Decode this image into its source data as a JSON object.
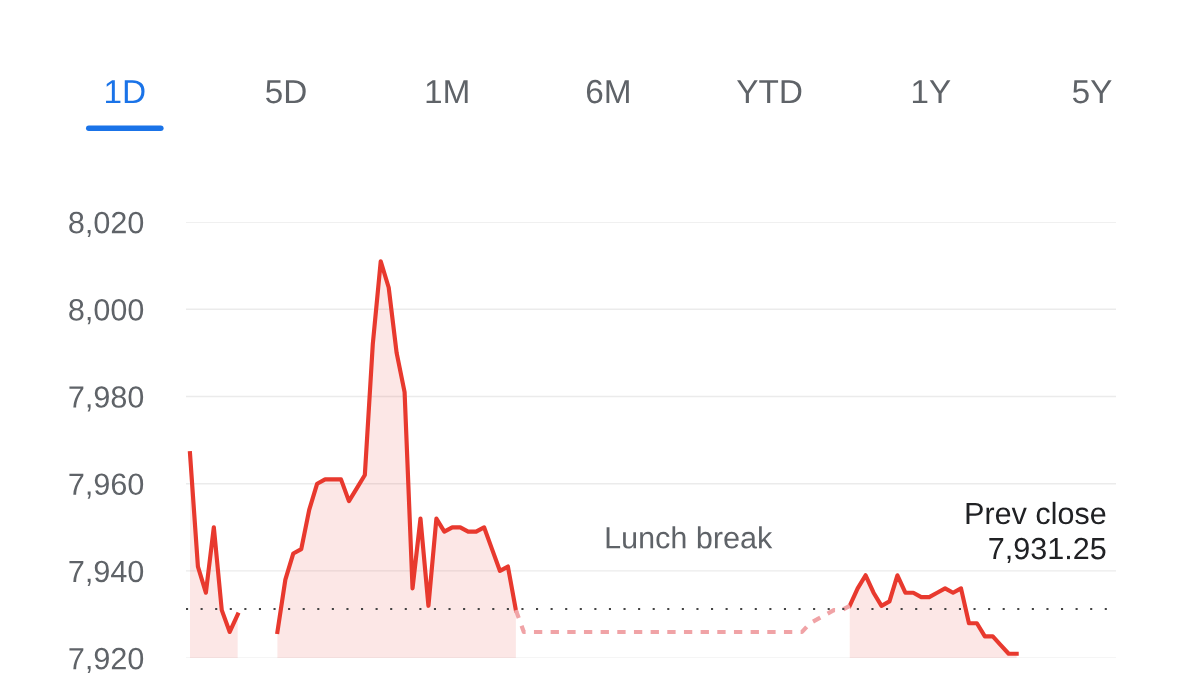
{
  "chart_data": {
    "type": "area",
    "categories": [
      null,
      null,
      null,
      null,
      null,
      null,
      null,
      null,
      null,
      null,
      null,
      null,
      null,
      null,
      null,
      null,
      null,
      null,
      null,
      null,
      null,
      null,
      null,
      null,
      null,
      null,
      null,
      null,
      null,
      null,
      null,
      null,
      null,
      null,
      null,
      null,
      null,
      null,
      null,
      null,
      null,
      null,
      null,
      null,
      null,
      null,
      null,
      null,
      null,
      null,
      null,
      null,
      null,
      null,
      null,
      null,
      null,
      null,
      null,
      null,
      null,
      null,
      null,
      null,
      null,
      null,
      null,
      null,
      null,
      null,
      null,
      null,
      null,
      null,
      null,
      null,
      null,
      null,
      null,
      null,
      null,
      null,
      null,
      null,
      null,
      null,
      null,
      null,
      null,
      null,
      null,
      null,
      null,
      null,
      null,
      null,
      null,
      null,
      null,
      null,
      null,
      null,
      null,
      null,
      null,
      null,
      null,
      null,
      null,
      null,
      null,
      null,
      null,
      null,
      null,
      null,
      null
    ],
    "series": [
      {
        "color": "#e8392e",
        "values": [
          7967,
          7941,
          7935,
          7950,
          7931,
          7926,
          7930,
          null,
          null,
          null,
          null,
          7926,
          7938,
          7944,
          7945,
          7954,
          7960,
          7961,
          7961,
          7961,
          7956,
          7959,
          7962,
          7992,
          8011,
          8005,
          7990,
          7981,
          7936,
          7952,
          7932,
          7952,
          7949,
          7950,
          7950,
          7949,
          7949,
          7950,
          7945,
          7940,
          7941,
          7931,
          null,
          null,
          null,
          null,
          null,
          null,
          null,
          null,
          null,
          null,
          null,
          null,
          null,
          null,
          null,
          null,
          null,
          null,
          null,
          null,
          null,
          null,
          null,
          null,
          null,
          null,
          null,
          null,
          null,
          null,
          null,
          null,
          null,
          null,
          null,
          null,
          null,
          null,
          null,
          null,
          null,
          7932,
          7936,
          7939,
          7935,
          7932,
          7933,
          7939,
          7935,
          7935,
          7934,
          7934,
          7935,
          7936,
          7935,
          7936,
          7928,
          7928,
          7925,
          7925,
          7923,
          7921,
          7921,
          null,
          null,
          null,
          null,
          null,
          null,
          null,
          null,
          null,
          null,
          null,
          null
        ]
      },
      {
        "type": "line",
        "color": "#f0a3a6",
        "line_style": "dashed",
        "values": [
          null,
          null,
          null,
          null,
          null,
          null,
          null,
          null,
          null,
          null,
          null,
          null,
          null,
          null,
          null,
          null,
          null,
          null,
          null,
          null,
          null,
          null,
          null,
          null,
          null,
          null,
          null,
          null,
          null,
          null,
          null,
          null,
          null,
          null,
          null,
          null,
          null,
          null,
          null,
          null,
          null,
          7931,
          7926,
          7926,
          7926,
          7926,
          7926,
          7926,
          7926,
          7926,
          7926,
          7926,
          7926,
          7926,
          7926,
          7926,
          7926,
          7926,
          7926,
          7926,
          7926,
          7926,
          7926,
          7926,
          7926,
          7926,
          7926,
          7926,
          7926,
          7926,
          7926,
          7926,
          7926,
          7926,
          7926,
          7926,
          7926,
          7926,
          7928,
          7929,
          7930,
          7931,
          7931,
          7932,
          null,
          null,
          null,
          null,
          null,
          null,
          null,
          null,
          null,
          null,
          null,
          null,
          null,
          null,
          null,
          null,
          null,
          null,
          null,
          null,
          null,
          null,
          null,
          null,
          null,
          null,
          null,
          null,
          null,
          null,
          null,
          null,
          null
        ]
      }
    ],
    "ylim": [
      7920,
      8020
    ],
    "yticks": [
      {
        "value": 7920,
        "label": "7,920"
      },
      {
        "value": 7940,
        "label": "7,940"
      },
      {
        "value": 7960,
        "label": "7,960"
      },
      {
        "value": 7980,
        "label": "7,980"
      },
      {
        "value": 8000,
        "label": "8,000"
      },
      {
        "value": 8020,
        "label": "8,020"
      }
    ],
    "tick_labels": "y",
    "grid": "y",
    "ref_lines": [
      {
        "axis": "y",
        "value": 7931.25,
        "label": "Prev close\n7,931.25",
        "color": "#444444",
        "line_style": "dotted"
      }
    ],
    "annotations": [
      "Lunch break",
      "1D",
      "5D",
      "1M",
      "6M",
      "YTD",
      "1Y",
      "5Y"
    ]
  }
}
